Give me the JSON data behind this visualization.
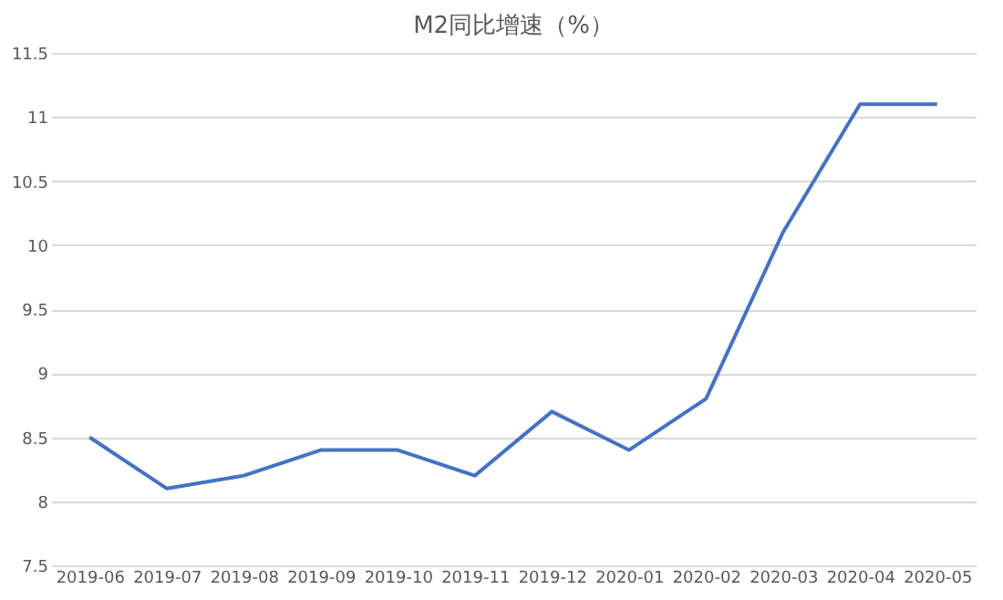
{
  "chart_data": {
    "type": "line",
    "title": "M2同比增速（%）",
    "categories": [
      "2019-06",
      "2019-07",
      "2019-08",
      "2019-09",
      "2019-10",
      "2019-11",
      "2019-12",
      "2020-01",
      "2020-02",
      "2020-03",
      "2020-04",
      "2020-05"
    ],
    "series": [
      {
        "color": "#4472c4",
        "values": [
          8.5,
          8.1,
          8.2,
          8.4,
          8.4,
          8.2,
          8.7,
          8.4,
          8.8,
          10.1,
          11.1,
          11.1
        ]
      }
    ],
    "ylim": [
      7.5,
      11.5
    ],
    "yticks": [
      7.5,
      8,
      8.5,
      9,
      9.5,
      10,
      10.5,
      11,
      11.5
    ],
    "grid": "y",
    "marker": "none",
    "line_style": "solid"
  }
}
